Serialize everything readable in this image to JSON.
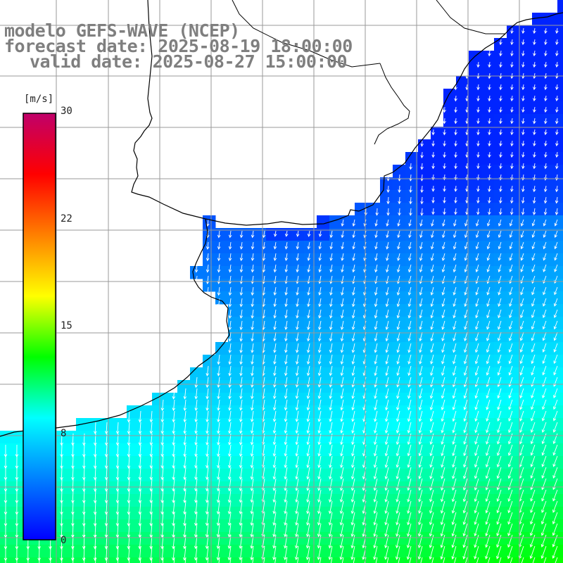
{
  "title": {
    "model": "modelo GEFS-WAVE (NCEP)",
    "forecast": "forecast date: 2025-08-19 18:00:00",
    "valid": "valid date: 2025-08-27 15:00:00"
  },
  "colorbar": {
    "unit": "[m/s]",
    "min": 0,
    "max": 30,
    "ticks": [
      "30",
      "22",
      "15",
      "8",
      "0"
    ],
    "tick_values": [
      30,
      22,
      15,
      8,
      0
    ],
    "colors": [
      "#0000ff",
      "#0080ff",
      "#00ffff",
      "#00ff00",
      "#ffff00",
      "#ff8000",
      "#ff0000",
      "#c0006a"
    ]
  },
  "colors": {
    "coast": "#000000",
    "grid": "#9a9a9a",
    "arrow": "#ffffff"
  }
}
